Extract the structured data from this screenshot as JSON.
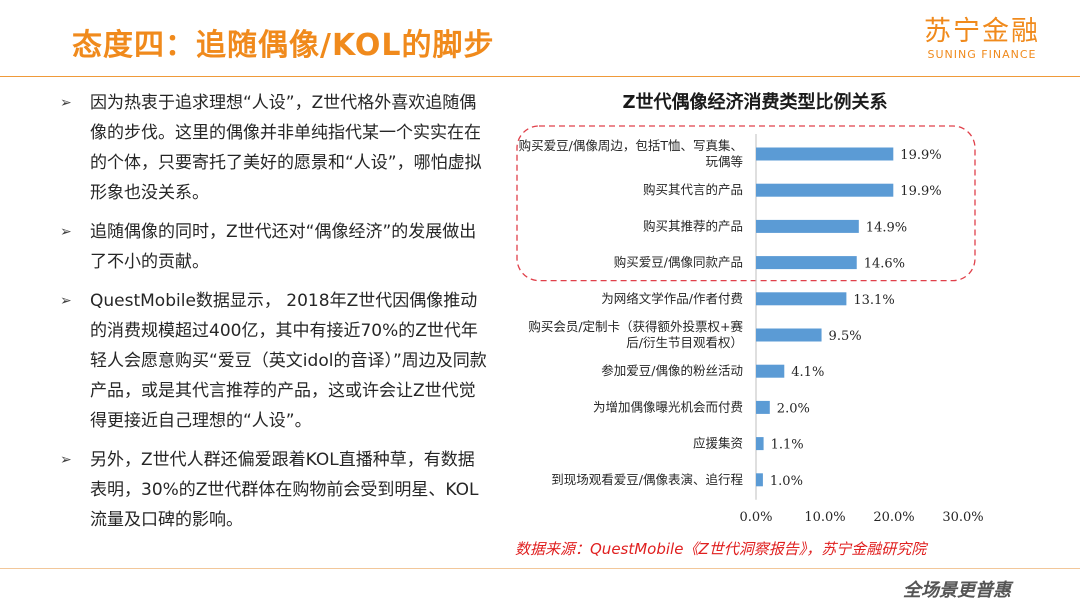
{
  "header": {
    "title": "态度四：追随偶像/KOL的脚步",
    "logo_cn": "苏宁金融",
    "logo_en": "SUNING FINANCE"
  },
  "bullets": [
    "因为热衷于追求理想“人设”，Z世代格外喜欢追随偶像的步伐。这里的偶像并非单纯指代某一个实实在在的个体，只要寄托了美好的愿景和“人设”，哪怕虚拟形象也没关系。",
    "追随偶像的同时，Z世代还对“偶像经济”的发展做出了不小的贡献。",
    "QuestMobile数据显示， 2018年Z世代因偶像推动的消费规模超过400亿，其中有接近70%的Z世代年轻人会愿意购买“爱豆（英文idol的音译）”周边及同款产品，或是其代言推荐的产品，这或许会让Z世代觉得更接近自己理想的“人设”。",
    "另外，Z世代人群还偏爱跟着KOL直播种草，有数据表明，30%的Z世代群体在购物前会受到明星、KOL流量及口碑的影响。"
  ],
  "footer": {
    "source": "数据来源：QuestMobile《Z世代洞察报告》，苏宁金融研究院",
    "slogan": "全场景更普惠"
  },
  "colors": {
    "brand": "#f08a1c",
    "bar": "#5b9bd5",
    "highlight": "#e0404a",
    "source": "#e02020"
  },
  "chart_data": {
    "type": "bar",
    "orientation": "horizontal",
    "title": "Z世代偶像经济消费类型比例关系",
    "categories": [
      "购买爱豆/偶像周边，包括T恤、写真集、玩偶等",
      "购买其代言的产品",
      "购买其推荐的产品",
      "购买爱豆/偶像同款产品",
      "为网络文学作品/作者付费",
      "购买会员/定制卡（获得额外投票权+赛后/衍生节目观看权）",
      "参加爱豆/偶像的粉丝活动",
      "为增加偶像曝光机会而付费",
      "应援集资",
      "到现场观看爱豆/偶像表演、追行程"
    ],
    "values": [
      19.9,
      19.9,
      14.9,
      14.6,
      13.1,
      9.5,
      4.1,
      2.0,
      1.1,
      1.0
    ],
    "value_labels": [
      "19.9%",
      "19.9%",
      "14.9%",
      "14.6%",
      "13.1%",
      "9.5%",
      "4.1%",
      "2.0%",
      "1.1%",
      "1.0%"
    ],
    "xlim": [
      0,
      30
    ],
    "xticks": [
      "0.0%",
      "10.0%",
      "20.0%",
      "30.0%"
    ],
    "highlighted_categories": [
      0,
      1,
      2,
      3
    ],
    "grid": false,
    "legend": "none"
  }
}
